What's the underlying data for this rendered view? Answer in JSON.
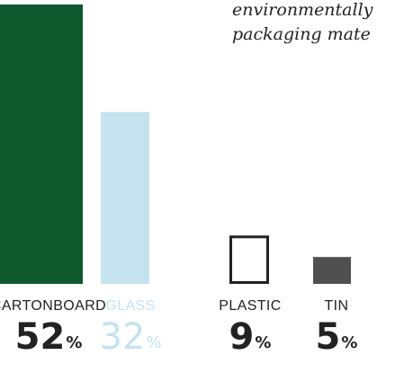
{
  "chart": {
    "title_lines": [
      "environmentally",
      "packaging mate"
    ]
  },
  "colors": {
    "cartonboard": "#0e5a2e",
    "glass": "#c4e3ef",
    "plastic": "#222222",
    "tin": "#505050",
    "text_dark": "#222222",
    "text_light": "#c4e3ef"
  },
  "chart_data": {
    "type": "bar",
    "title": "environmentally packaging mate",
    "categories": [
      "CARTONBOARD",
      "GLASS",
      "PLASTIC",
      "TIN"
    ],
    "values": [
      52,
      32,
      9,
      5
    ],
    "unit": "%",
    "ylim": [
      0,
      70
    ],
    "styles": [
      "filled",
      "filled",
      "outline",
      "filled"
    ],
    "percent_labels": [
      "52",
      "32",
      "9",
      "5"
    ]
  }
}
